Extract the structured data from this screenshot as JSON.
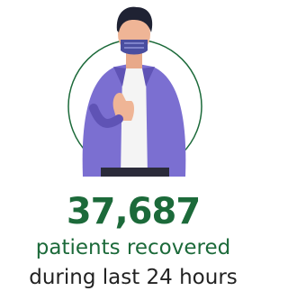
{
  "stat": {
    "value": "37,687",
    "line1": "patients recovered",
    "line2": "during last 24 hours"
  }
}
